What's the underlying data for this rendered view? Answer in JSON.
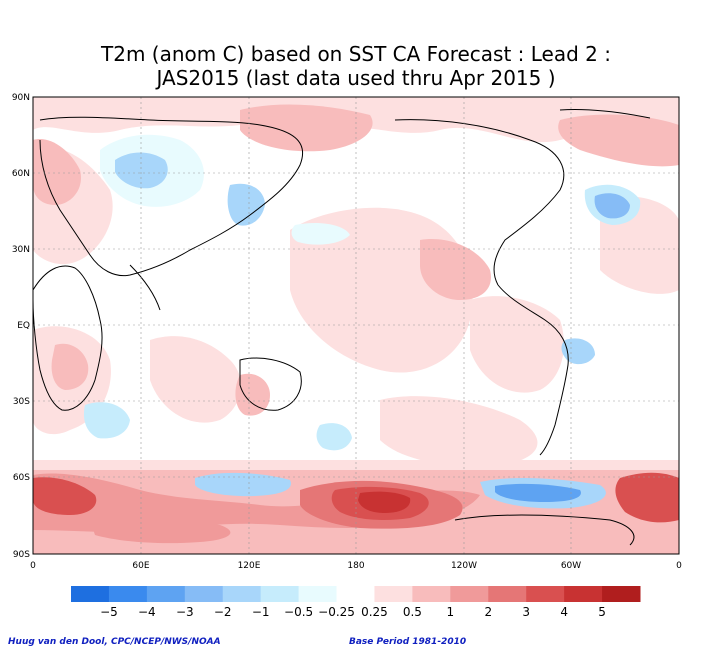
{
  "title": {
    "line1": "T2m (anom C) based on SST CA Forecast : Lead 2 :",
    "line2": "JAS2015 (last data used thru Apr 2015 )"
  },
  "axes": {
    "lat_labels": [
      "90N",
      "60N",
      "30N",
      "EQ",
      "30S",
      "60S",
      "90S"
    ],
    "lon_labels": [
      "0",
      "60E",
      "120E",
      "180",
      "120W",
      "60W",
      "0"
    ]
  },
  "colorbar": {
    "labels": [
      "−5",
      "−4",
      "−3",
      "−2",
      "−1",
      "−0.5",
      "−0.25",
      "0.25",
      "0.5",
      "1",
      "2",
      "3",
      "4",
      "5"
    ],
    "colors": [
      "#1e6fe0",
      "#3a8aee",
      "#5ea3f2",
      "#86bcf6",
      "#a8d6fa",
      "#c6ecfc",
      "#e8fbfe",
      "#ffffff",
      "#fde0e0",
      "#f8bcbc",
      "#f09a9a",
      "#e57676",
      "#d95050",
      "#c83232",
      "#b01e1e"
    ]
  },
  "footer": {
    "left": "Huug van den Dool, CPC/NCEP/NWS/NOAA",
    "right": "Base Period 1981-2010"
  }
}
